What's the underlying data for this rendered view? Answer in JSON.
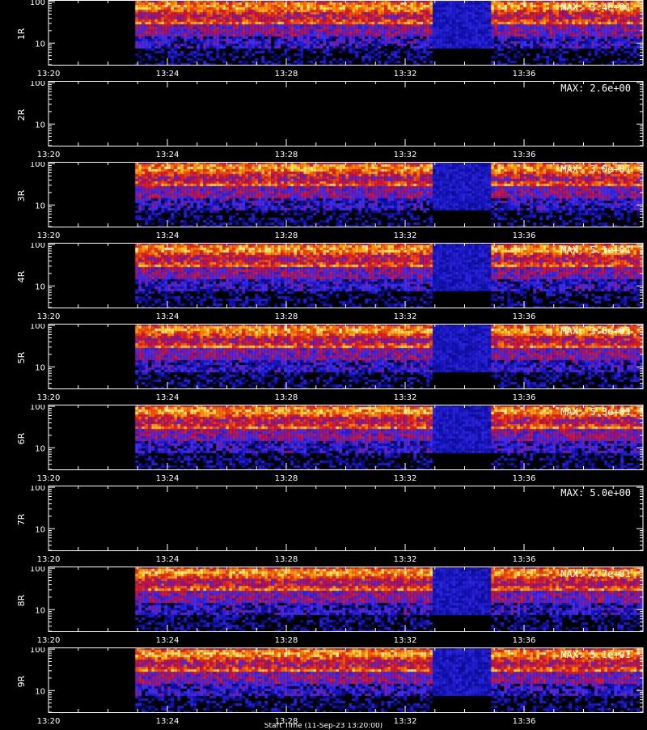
{
  "chart_data": {
    "type": "heatmap",
    "x_unit": "time (HH:MM)",
    "xlim": [
      "13:20",
      "13:40"
    ],
    "x_ticks": [
      "13:20",
      "13:24",
      "13:28",
      "13:32",
      "13:36"
    ],
    "y_scale": "log",
    "ylim": [
      3,
      110
    ],
    "y_ticks": [
      10,
      100
    ],
    "colormap": [
      "#000000",
      "#1010b0",
      "#3a30ff",
      "#a01070",
      "#e02020",
      "#ff8000",
      "#ffe040",
      "#ffffff"
    ],
    "data_gap": [
      "13:32:50",
      "13:34:50"
    ],
    "data_start": "13:22:55",
    "footer_text": "Start Time (11-Sep-23 13:20:00)",
    "panels": [
      {
        "label": "1R",
        "max_text": "MAX: 3.4e+01",
        "max": 34
      },
      {
        "label": "2R",
        "max_text": "MAX: 2.6e+00",
        "max": 2.6
      },
      {
        "label": "3R",
        "max_text": "MAX: 3.0e+01",
        "max": 30
      },
      {
        "label": "4R",
        "max_text": "MAX: 5.1e+01",
        "max": 51
      },
      {
        "label": "5R",
        "max_text": "MAX: 3.6e+01",
        "max": 36
      },
      {
        "label": "6R",
        "max_text": "MAX: 5.3e+01",
        "max": 53
      },
      {
        "label": "7R",
        "max_text": "MAX: 5.0e+00",
        "max": 5.0
      },
      {
        "label": "8R",
        "max_text": "MAX: 4.7e+01",
        "max": 47
      },
      {
        "label": "9R",
        "max_text": "MAX: 5.1e+01",
        "max": 51
      }
    ]
  }
}
